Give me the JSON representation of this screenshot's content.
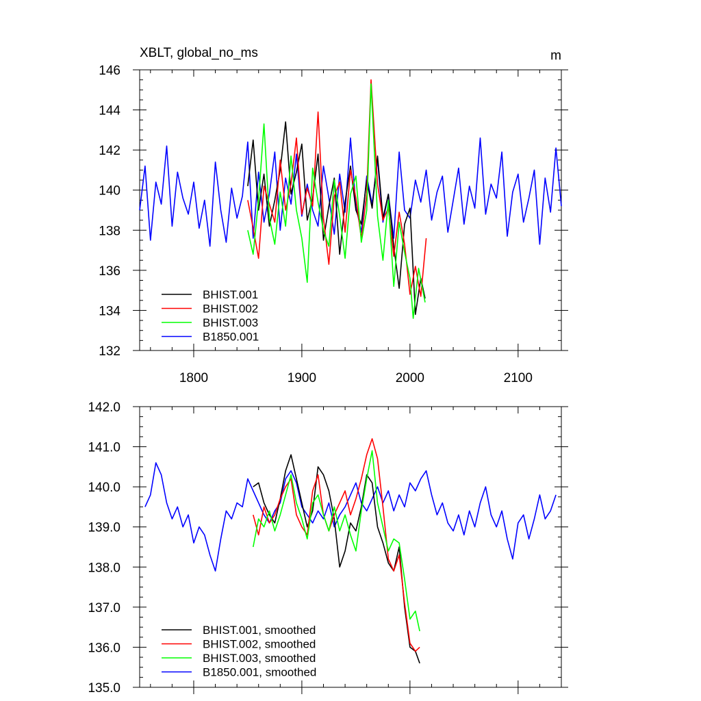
{
  "chart_data": [
    {
      "type": "line",
      "title_left": "XBLT, global_no_ms",
      "title_right": "m",
      "xlim": [
        1750,
        2140
      ],
      "ylim": [
        132,
        146
      ],
      "x_ticks": [
        1800,
        1900,
        2000,
        2100
      ],
      "y_ticks": [
        132,
        134,
        136,
        138,
        140,
        142,
        144,
        146
      ],
      "y_tick_labels": [
        "132",
        "134",
        "136",
        "138",
        "140",
        "142",
        "144",
        "146"
      ],
      "grid": false,
      "legend_position": "bottom-left",
      "series": [
        {
          "name": "BHIST.001",
          "color": "#000000",
          "x": [
            1850,
            1855,
            1860,
            1865,
            1870,
            1875,
            1880,
            1885,
            1890,
            1895,
            1900,
            1905,
            1910,
            1915,
            1920,
            1925,
            1930,
            1935,
            1940,
            1945,
            1950,
            1955,
            1960,
            1965,
            1970,
            1975,
            1980,
            1985,
            1990,
            1995,
            2000,
            2005,
            2010,
            2014
          ],
          "values": [
            140.2,
            142.5,
            139.0,
            140.8,
            138.2,
            139.5,
            141.0,
            143.4,
            139.8,
            140.9,
            142.3,
            138.5,
            139.6,
            141.8,
            137.5,
            139.2,
            140.6,
            136.8,
            139.4,
            141.2,
            139.0,
            138.3,
            140.5,
            139.1,
            141.7,
            138.6,
            139.8,
            137.2,
            135.1,
            138.3,
            139.1,
            133.8,
            135.6,
            134.6
          ]
        },
        {
          "name": "BHIST.002",
          "color": "#ff0000",
          "x": [
            1850,
            1855,
            1860,
            1865,
            1870,
            1875,
            1880,
            1885,
            1890,
            1895,
            1900,
            1905,
            1910,
            1915,
            1920,
            1925,
            1930,
            1935,
            1940,
            1945,
            1950,
            1955,
            1960,
            1964,
            1970,
            1975,
            1980,
            1985,
            1990,
            1995,
            2000,
            2005,
            2010,
            2015
          ],
          "values": [
            139.5,
            138.1,
            136.6,
            140.2,
            139.3,
            138.4,
            141.5,
            139.0,
            140.3,
            142.6,
            138.8,
            140.1,
            139.2,
            143.9,
            138.6,
            136.3,
            139.7,
            140.4,
            137.9,
            141.0,
            139.6,
            137.6,
            139.8,
            145.5,
            140.3,
            138.5,
            139.1,
            136.7,
            138.9,
            137.3,
            134.8,
            136.2,
            134.7,
            137.6
          ]
        },
        {
          "name": "BHIST.003",
          "color": "#00ff00",
          "x": [
            1850,
            1855,
            1860,
            1865,
            1870,
            1875,
            1880,
            1885,
            1890,
            1895,
            1900,
            1905,
            1910,
            1915,
            1920,
            1925,
            1930,
            1935,
            1940,
            1945,
            1950,
            1955,
            1960,
            1964,
            1970,
            1975,
            1980,
            1985,
            1990,
            1995,
            2000,
            2003,
            2008,
            2014
          ],
          "values": [
            138.0,
            136.8,
            139.5,
            143.3,
            138.6,
            137.3,
            139.9,
            138.2,
            141.7,
            139.0,
            137.6,
            135.4,
            141.1,
            139.4,
            138.0,
            137.2,
            140.5,
            138.7,
            136.6,
            139.8,
            140.7,
            137.4,
            139.0,
            145.3,
            138.7,
            136.5,
            139.5,
            135.2,
            138.4,
            136.9,
            135.6,
            133.6,
            136.1,
            134.4
          ]
        },
        {
          "name": "B1850.001",
          "color": "#0000ff",
          "x": [
            1750,
            1755,
            1760,
            1765,
            1770,
            1775,
            1780,
            1785,
            1790,
            1795,
            1800,
            1805,
            1810,
            1815,
            1820,
            1825,
            1830,
            1835,
            1840,
            1845,
            1850,
            1855,
            1860,
            1865,
            1870,
            1875,
            1880,
            1885,
            1890,
            1895,
            1900,
            1905,
            1910,
            1915,
            1920,
            1925,
            1930,
            1935,
            1940,
            1945,
            1950,
            1955,
            1960,
            1965,
            1970,
            1975,
            1980,
            1985,
            1990,
            1995,
            2000,
            2005,
            2010,
            2015,
            2020,
            2025,
            2030,
            2035,
            2040,
            2045,
            2050,
            2055,
            2060,
            2065,
            2070,
            2075,
            2080,
            2085,
            2090,
            2095,
            2100,
            2105,
            2110,
            2115,
            2120,
            2125,
            2130,
            2135,
            2140
          ],
          "values": [
            139.0,
            141.2,
            137.5,
            140.4,
            139.3,
            142.2,
            138.2,
            140.9,
            139.6,
            138.8,
            140.4,
            138.1,
            139.5,
            137.2,
            141.4,
            139.0,
            137.4,
            140.1,
            138.6,
            139.7,
            142.4,
            137.6,
            140.9,
            138.4,
            139.8,
            141.9,
            138.0,
            140.6,
            139.3,
            141.8,
            138.7,
            140.3,
            139.0,
            138.2,
            141.2,
            139.6,
            137.8,
            140.8,
            138.9,
            142.6,
            139.2,
            137.9,
            140.7,
            139.3,
            141.5,
            138.4,
            139.8,
            137.6,
            141.9,
            139.0,
            138.6,
            140.5,
            139.4,
            141.0,
            138.5,
            139.9,
            140.7,
            137.9,
            139.5,
            141.1,
            138.3,
            140.2,
            139.1,
            142.6,
            138.8,
            140.3,
            139.6,
            141.9,
            137.7,
            139.9,
            140.8,
            138.4,
            139.6,
            141.0,
            137.3,
            140.6,
            138.9,
            142.1,
            139.2
          ]
        }
      ]
    },
    {
      "type": "line",
      "xlim": [
        1750,
        2140
      ],
      "ylim": [
        135.0,
        142.0
      ],
      "x_ticks": [
        1800,
        1900,
        2000,
        2100
      ],
      "y_ticks": [
        135,
        136,
        137,
        138,
        139,
        140,
        141,
        142
      ],
      "y_tick_labels": [
        "135.0",
        "136.0",
        "137.0",
        "138.0",
        "139.0",
        "140.0",
        "141.0",
        "142.0"
      ],
      "grid": false,
      "legend_position": "bottom-left",
      "series": [
        {
          "name": "BHIST.001, smoothed",
          "color": "#000000",
          "x": [
            1855,
            1860,
            1865,
            1870,
            1875,
            1880,
            1885,
            1890,
            1895,
            1900,
            1905,
            1910,
            1915,
            1920,
            1925,
            1930,
            1935,
            1940,
            1945,
            1950,
            1955,
            1960,
            1965,
            1970,
            1975,
            1980,
            1985,
            1990,
            1995,
            2000,
            2005,
            2009
          ],
          "values": [
            140.0,
            140.1,
            139.6,
            139.3,
            139.1,
            139.7,
            140.4,
            140.8,
            140.2,
            139.6,
            139.0,
            139.4,
            140.5,
            140.3,
            139.9,
            139.2,
            138.0,
            138.4,
            139.1,
            138.9,
            139.5,
            140.3,
            140.1,
            139.0,
            138.6,
            138.1,
            137.9,
            138.5,
            137.0,
            136.0,
            135.9,
            135.6
          ]
        },
        {
          "name": "BHIST.002, smoothed",
          "color": "#ff0000",
          "x": [
            1855,
            1860,
            1865,
            1870,
            1875,
            1880,
            1885,
            1890,
            1895,
            1900,
            1905,
            1910,
            1915,
            1920,
            1925,
            1930,
            1935,
            1940,
            1945,
            1950,
            1955,
            1960,
            1965,
            1970,
            1975,
            1980,
            1985,
            1990,
            1995,
            2000,
            2005,
            2009
          ],
          "values": [
            139.3,
            138.8,
            139.5,
            139.1,
            139.3,
            139.7,
            140.0,
            140.2,
            139.3,
            139.0,
            138.8,
            139.9,
            140.3,
            139.3,
            138.9,
            139.3,
            139.6,
            139.9,
            139.3,
            139.7,
            140.2,
            140.8,
            141.2,
            140.7,
            139.5,
            138.2,
            137.9,
            138.3,
            137.1,
            136.1,
            135.9,
            136.0
          ]
        },
        {
          "name": "BHIST.003, smoothed",
          "color": "#00ff00",
          "x": [
            1855,
            1860,
            1865,
            1870,
            1875,
            1880,
            1885,
            1890,
            1895,
            1900,
            1905,
            1910,
            1915,
            1920,
            1925,
            1930,
            1935,
            1940,
            1945,
            1950,
            1955,
            1960,
            1965,
            1970,
            1975,
            1980,
            1985,
            1990,
            1995,
            2000,
            2005,
            2009
          ],
          "values": [
            138.5,
            139.2,
            139.0,
            139.4,
            138.9,
            139.3,
            139.8,
            140.3,
            139.6,
            139.2,
            138.7,
            139.6,
            139.8,
            139.3,
            138.9,
            139.5,
            138.9,
            139.3,
            138.8,
            138.4,
            139.4,
            140.2,
            140.9,
            139.6,
            139.0,
            138.4,
            138.7,
            138.6,
            137.7,
            136.7,
            136.9,
            136.4
          ]
        },
        {
          "name": "B1850.001, smoothed",
          "color": "#0000ff",
          "x": [
            1755,
            1760,
            1765,
            1770,
            1775,
            1780,
            1785,
            1790,
            1795,
            1800,
            1805,
            1810,
            1815,
            1820,
            1825,
            1830,
            1835,
            1840,
            1845,
            1850,
            1855,
            1860,
            1865,
            1870,
            1875,
            1880,
            1885,
            1890,
            1895,
            1900,
            1905,
            1910,
            1915,
            1920,
            1925,
            1930,
            1935,
            1940,
            1945,
            1950,
            1955,
            1960,
            1965,
            1970,
            1975,
            1980,
            1985,
            1990,
            1995,
            2000,
            2005,
            2010,
            2015,
            2020,
            2025,
            2030,
            2035,
            2040,
            2045,
            2050,
            2055,
            2060,
            2065,
            2070,
            2075,
            2080,
            2085,
            2090,
            2095,
            2100,
            2105,
            2110,
            2115,
            2120,
            2125,
            2130,
            2135
          ],
          "values": [
            139.5,
            139.8,
            140.6,
            140.3,
            139.6,
            139.2,
            139.5,
            139.0,
            139.3,
            138.6,
            139.0,
            138.8,
            138.3,
            137.9,
            138.7,
            139.4,
            139.2,
            139.6,
            139.5,
            140.2,
            139.9,
            139.6,
            139.3,
            139.1,
            139.4,
            139.6,
            140.2,
            140.4,
            140.1,
            139.5,
            139.3,
            139.1,
            139.4,
            139.2,
            139.6,
            139.0,
            139.3,
            139.5,
            139.8,
            140.1,
            139.6,
            139.4,
            139.7,
            140.0,
            139.6,
            139.9,
            139.4,
            139.8,
            139.5,
            140.1,
            139.9,
            140.2,
            140.4,
            139.8,
            139.3,
            139.6,
            139.1,
            138.9,
            139.3,
            138.8,
            139.4,
            139.0,
            139.6,
            140.0,
            139.3,
            139.0,
            139.4,
            138.7,
            138.2,
            139.1,
            139.3,
            138.7,
            139.2,
            139.8,
            139.2,
            139.4,
            139.8
          ]
        }
      ]
    }
  ]
}
